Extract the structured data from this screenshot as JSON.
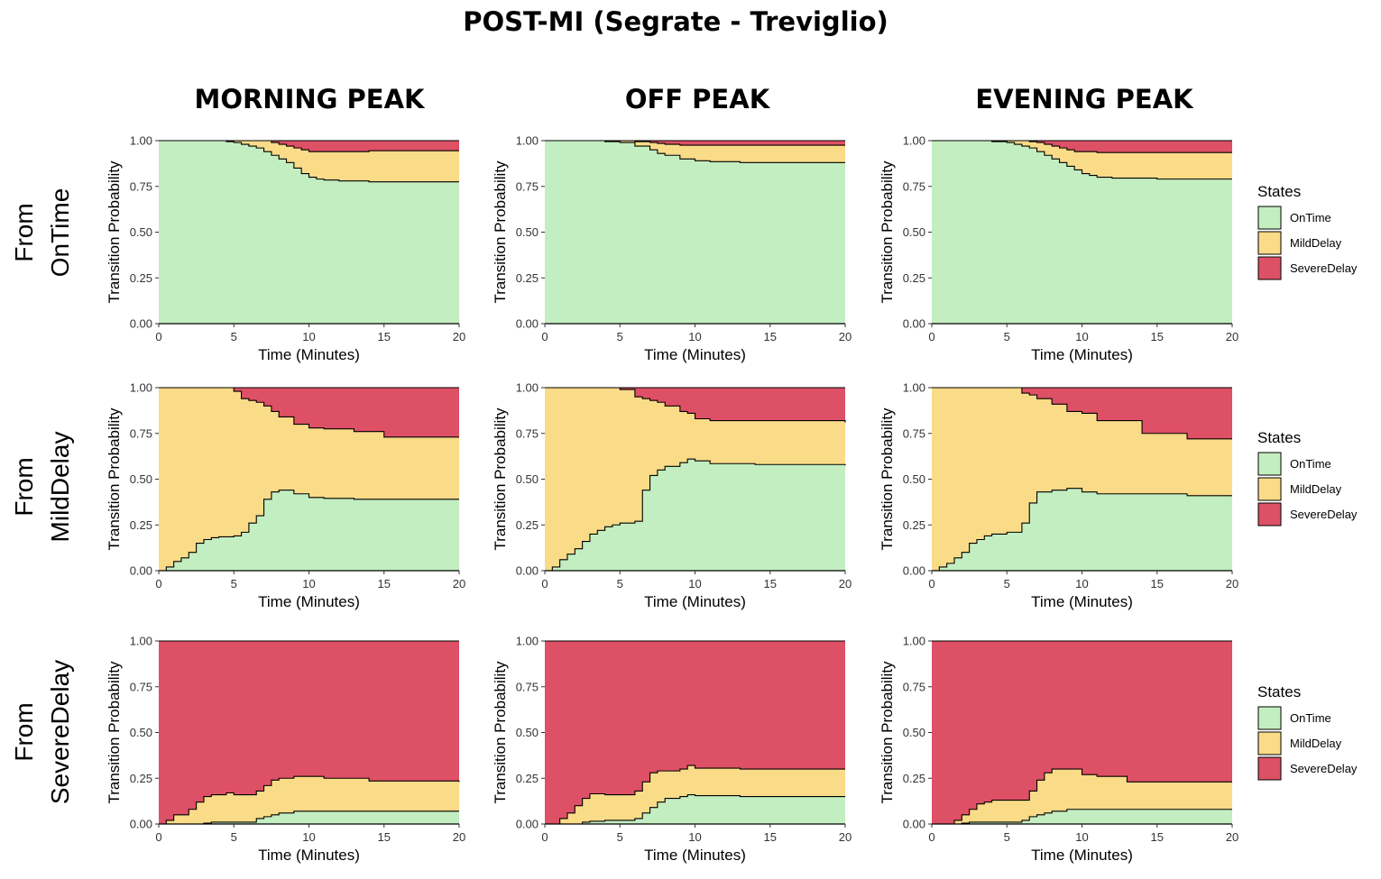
{
  "title": "POST-MI (Segrate - Treviglio)",
  "columns": [
    "MORNING PEAK",
    "OFF PEAK",
    "EVENING PEAK"
  ],
  "rows": [
    {
      "line1": "From",
      "line2": "OnTime"
    },
    {
      "line1": "From",
      "line2": "MildDelay"
    },
    {
      "line1": "From",
      "line2": "SevereDelay"
    }
  ],
  "legend": {
    "title": "States",
    "items": [
      {
        "label": "OnTime",
        "color": "#c3eec1"
      },
      {
        "label": "MildDelay",
        "color": "#fadb88"
      },
      {
        "label": "SevereDelay",
        "color": "#de5065"
      }
    ]
  },
  "chart_data": [
    {
      "type": "area",
      "stacked": true,
      "step": true,
      "row": "From OnTime",
      "column": "MORNING PEAK",
      "xlabel": "Time (Minutes)",
      "ylabel": "Transition Probability",
      "xlim": [
        0,
        20
      ],
      "ylim": [
        0,
        1
      ],
      "xticks": [
        "0",
        "5",
        "10",
        "15",
        "20"
      ],
      "yticks": [
        "0.00",
        "0.25",
        "0.50",
        "0.75",
        "1.00"
      ],
      "x": [
        0,
        2,
        3.5,
        4.5,
        5,
        5.5,
        6,
        6.5,
        7,
        7.5,
        8,
        8.5,
        9,
        9.5,
        10,
        10.5,
        11,
        12,
        14,
        20
      ],
      "series": [
        {
          "name": "OnTime",
          "values": [
            1.0,
            1.0,
            1.0,
            0.995,
            0.99,
            0.98,
            0.97,
            0.96,
            0.94,
            0.92,
            0.9,
            0.88,
            0.85,
            0.82,
            0.8,
            0.79,
            0.785,
            0.78,
            0.775,
            0.775
          ]
        },
        {
          "name": "MildDelay",
          "values": [
            0,
            0,
            0,
            0.005,
            0.01,
            0.02,
            0.03,
            0.04,
            0.06,
            0.07,
            0.08,
            0.09,
            0.11,
            0.13,
            0.14,
            0.15,
            0.155,
            0.16,
            0.17,
            0.17
          ]
        },
        {
          "name": "SevereDelay",
          "values": [
            0,
            0,
            0,
            0,
            0,
            0,
            0,
            0,
            0,
            0.01,
            0.02,
            0.03,
            0.04,
            0.05,
            0.06,
            0.06,
            0.06,
            0.06,
            0.055,
            0.055
          ]
        }
      ]
    },
    {
      "type": "area",
      "stacked": true,
      "step": true,
      "row": "From OnTime",
      "column": "OFF PEAK",
      "xlabel": "Time (Minutes)",
      "ylabel": "Transition Probability",
      "xlim": [
        0,
        20
      ],
      "ylim": [
        0,
        1
      ],
      "xticks": [
        "0",
        "5",
        "10",
        "15",
        "20"
      ],
      "yticks": [
        "0.00",
        "0.25",
        "0.50",
        "0.75",
        "1.00"
      ],
      "x": [
        0,
        4,
        5,
        6,
        7,
        7.5,
        8,
        9,
        10,
        11,
        13,
        20
      ],
      "series": [
        {
          "name": "OnTime",
          "values": [
            1.0,
            0.995,
            0.99,
            0.97,
            0.95,
            0.93,
            0.92,
            0.9,
            0.89,
            0.885,
            0.88,
            0.88
          ]
        },
        {
          "name": "MildDelay",
          "values": [
            0,
            0.005,
            0.01,
            0.025,
            0.04,
            0.055,
            0.06,
            0.075,
            0.085,
            0.09,
            0.095,
            0.095
          ]
        },
        {
          "name": "SevereDelay",
          "values": [
            0,
            0,
            0,
            0.005,
            0.01,
            0.015,
            0.02,
            0.025,
            0.025,
            0.025,
            0.025,
            0.025
          ]
        }
      ]
    },
    {
      "type": "area",
      "stacked": true,
      "step": true,
      "row": "From OnTime",
      "column": "EVENING PEAK",
      "xlabel": "Time (Minutes)",
      "ylabel": "Transition Probability",
      "xlim": [
        0,
        20
      ],
      "ylim": [
        0,
        1
      ],
      "xticks": [
        "0",
        "5",
        "10",
        "15",
        "20"
      ],
      "yticks": [
        "0.00",
        "0.25",
        "0.50",
        "0.75",
        "1.00"
      ],
      "x": [
        0,
        4,
        5,
        5.5,
        6,
        6.5,
        7,
        7.5,
        8,
        8.5,
        9,
        9.5,
        10,
        10.5,
        11,
        12,
        15,
        20
      ],
      "series": [
        {
          "name": "OnTime",
          "values": [
            1.0,
            0.995,
            0.99,
            0.98,
            0.97,
            0.96,
            0.94,
            0.92,
            0.9,
            0.88,
            0.86,
            0.84,
            0.82,
            0.81,
            0.8,
            0.795,
            0.79,
            0.79
          ]
        },
        {
          "name": "MildDelay",
          "values": [
            0,
            0.005,
            0.01,
            0.02,
            0.03,
            0.035,
            0.05,
            0.06,
            0.07,
            0.08,
            0.09,
            0.1,
            0.12,
            0.13,
            0.135,
            0.14,
            0.145,
            0.145
          ]
        },
        {
          "name": "SevereDelay",
          "values": [
            0,
            0,
            0,
            0,
            0,
            0.005,
            0.01,
            0.02,
            0.03,
            0.04,
            0.05,
            0.06,
            0.06,
            0.06,
            0.065,
            0.065,
            0.065,
            0.065
          ]
        }
      ]
    },
    {
      "type": "area",
      "stacked": true,
      "step": true,
      "row": "From MildDelay",
      "column": "MORNING PEAK",
      "xlabel": "Time (Minutes)",
      "ylabel": "Transition Probability",
      "xlim": [
        0,
        20
      ],
      "ylim": [
        0,
        1
      ],
      "xticks": [
        "0",
        "5",
        "10",
        "15",
        "20"
      ],
      "yticks": [
        "0.00",
        "0.25",
        "0.50",
        "0.75",
        "1.00"
      ],
      "x": [
        0,
        0.5,
        1,
        1.5,
        2,
        2.5,
        3,
        3.5,
        4,
        5,
        5.5,
        6,
        6.5,
        7,
        7.5,
        8,
        9,
        10,
        11,
        13,
        15,
        20
      ],
      "series": [
        {
          "name": "OnTime",
          "values": [
            0,
            0.02,
            0.05,
            0.07,
            0.1,
            0.15,
            0.17,
            0.18,
            0.185,
            0.19,
            0.21,
            0.26,
            0.3,
            0.39,
            0.43,
            0.44,
            0.42,
            0.4,
            0.395,
            0.39,
            0.39,
            0.39
          ]
        },
        {
          "name": "MildDelay",
          "values": [
            1.0,
            0.98,
            0.95,
            0.93,
            0.9,
            0.85,
            0.83,
            0.82,
            0.815,
            0.79,
            0.73,
            0.67,
            0.62,
            0.51,
            0.44,
            0.4,
            0.38,
            0.38,
            0.38,
            0.37,
            0.34,
            0.34
          ]
        },
        {
          "name": "SevereDelay",
          "values": [
            0,
            0,
            0,
            0,
            0,
            0,
            0,
            0,
            0,
            0.02,
            0.06,
            0.07,
            0.08,
            0.1,
            0.13,
            0.16,
            0.2,
            0.22,
            0.225,
            0.24,
            0.27,
            0.27
          ]
        }
      ]
    },
    {
      "type": "area",
      "stacked": true,
      "step": true,
      "row": "From MildDelay",
      "column": "OFF PEAK",
      "xlabel": "Time (Minutes)",
      "ylabel": "Transition Probability",
      "xlim": [
        0,
        20
      ],
      "ylim": [
        0,
        1
      ],
      "xticks": [
        "0",
        "5",
        "10",
        "15",
        "20"
      ],
      "yticks": [
        "0.00",
        "0.25",
        "0.50",
        "0.75",
        "1.00"
      ],
      "x": [
        0,
        0.5,
        1,
        1.5,
        2,
        2.5,
        3,
        3.5,
        4,
        4.5,
        5,
        6,
        6.5,
        7,
        7.5,
        8,
        9,
        9.5,
        10,
        11,
        14,
        20
      ],
      "series": [
        {
          "name": "OnTime",
          "values": [
            0,
            0.02,
            0.06,
            0.09,
            0.12,
            0.16,
            0.2,
            0.22,
            0.24,
            0.25,
            0.26,
            0.27,
            0.44,
            0.52,
            0.55,
            0.57,
            0.59,
            0.61,
            0.6,
            0.585,
            0.58,
            0.575
          ]
        },
        {
          "name": "MildDelay",
          "values": [
            1.0,
            0.98,
            0.94,
            0.91,
            0.88,
            0.84,
            0.8,
            0.78,
            0.76,
            0.75,
            0.73,
            0.68,
            0.5,
            0.41,
            0.37,
            0.33,
            0.28,
            0.25,
            0.23,
            0.235,
            0.24,
            0.235
          ]
        },
        {
          "name": "SevereDelay",
          "values": [
            0,
            0,
            0,
            0,
            0,
            0,
            0,
            0,
            0,
            0,
            0.01,
            0.05,
            0.06,
            0.07,
            0.08,
            0.1,
            0.13,
            0.14,
            0.17,
            0.18,
            0.18,
            0.19
          ]
        }
      ]
    },
    {
      "type": "area",
      "stacked": true,
      "step": true,
      "row": "From MildDelay",
      "column": "EVENING PEAK",
      "xlabel": "Time (Minutes)",
      "ylabel": "Transition Probability",
      "xlim": [
        0,
        20
      ],
      "ylim": [
        0,
        1
      ],
      "xticks": [
        "0",
        "5",
        "10",
        "15",
        "20"
      ],
      "yticks": [
        "0.00",
        "0.25",
        "0.50",
        "0.75",
        "1.00"
      ],
      "x": [
        0,
        0.5,
        1,
        1.5,
        2,
        2.5,
        3,
        3.5,
        4,
        5,
        6,
        6.5,
        7,
        8,
        9,
        10,
        11,
        14,
        17,
        20
      ],
      "series": [
        {
          "name": "OnTime",
          "values": [
            0,
            0.02,
            0.04,
            0.07,
            0.1,
            0.15,
            0.17,
            0.19,
            0.2,
            0.21,
            0.26,
            0.37,
            0.43,
            0.44,
            0.45,
            0.43,
            0.42,
            0.42,
            0.41,
            0.41
          ]
        },
        {
          "name": "MildDelay",
          "values": [
            1.0,
            0.98,
            0.96,
            0.93,
            0.9,
            0.85,
            0.83,
            0.81,
            0.8,
            0.79,
            0.71,
            0.59,
            0.51,
            0.47,
            0.42,
            0.43,
            0.4,
            0.33,
            0.31,
            0.31
          ]
        },
        {
          "name": "SevereDelay",
          "values": [
            0,
            0,
            0,
            0,
            0,
            0,
            0,
            0,
            0,
            0,
            0.03,
            0.04,
            0.06,
            0.09,
            0.13,
            0.14,
            0.18,
            0.25,
            0.28,
            0.28
          ]
        }
      ]
    },
    {
      "type": "area",
      "stacked": true,
      "step": true,
      "row": "From SevereDelay",
      "column": "MORNING PEAK",
      "xlabel": "Time (Minutes)",
      "ylabel": "Transition Probability",
      "xlim": [
        0,
        20
      ],
      "ylim": [
        0,
        1
      ],
      "xticks": [
        "0",
        "5",
        "10",
        "15",
        "20"
      ],
      "yticks": [
        "0.00",
        "0.25",
        "0.50",
        "0.75",
        "1.00"
      ],
      "x": [
        0,
        0.5,
        1,
        2,
        2.5,
        3,
        3.5,
        4.5,
        5,
        6.5,
        7,
        7.5,
        8,
        9,
        10,
        11,
        14,
        20
      ],
      "series": [
        {
          "name": "OnTime",
          "values": [
            0,
            0,
            0,
            0,
            0,
            0.005,
            0.01,
            0.01,
            0.01,
            0.03,
            0.04,
            0.05,
            0.06,
            0.07,
            0.07,
            0.07,
            0.07,
            0.07
          ]
        },
        {
          "name": "MildDelay",
          "values": [
            0,
            0.02,
            0.05,
            0.08,
            0.12,
            0.145,
            0.15,
            0.16,
            0.15,
            0.15,
            0.17,
            0.19,
            0.19,
            0.19,
            0.19,
            0.18,
            0.165,
            0.16
          ]
        },
        {
          "name": "SevereDelay",
          "values": [
            1.0,
            0.98,
            0.95,
            0.92,
            0.88,
            0.85,
            0.84,
            0.83,
            0.84,
            0.82,
            0.79,
            0.76,
            0.75,
            0.74,
            0.74,
            0.75,
            0.765,
            0.77
          ]
        }
      ]
    },
    {
      "type": "area",
      "stacked": true,
      "step": true,
      "row": "From SevereDelay",
      "column": "OFF PEAK",
      "xlabel": "Time (Minutes)",
      "ylabel": "Transition Probability",
      "xlim": [
        0,
        20
      ],
      "ylim": [
        0,
        1
      ],
      "xticks": [
        "0",
        "5",
        "10",
        "15",
        "20"
      ],
      "yticks": [
        "0.00",
        "0.25",
        "0.50",
        "0.75",
        "1.00"
      ],
      "x": [
        0,
        1,
        1.5,
        2,
        2.5,
        3,
        4,
        5,
        6,
        6.5,
        7,
        7.5,
        8,
        9,
        9.5,
        10,
        13,
        20
      ],
      "series": [
        {
          "name": "OnTime",
          "values": [
            0,
            0,
            0,
            0,
            0.01,
            0.015,
            0.02,
            0.02,
            0.03,
            0.06,
            0.09,
            0.12,
            0.14,
            0.15,
            0.16,
            0.155,
            0.15,
            0.15
          ]
        },
        {
          "name": "MildDelay",
          "values": [
            0,
            0.03,
            0.06,
            0.1,
            0.13,
            0.15,
            0.14,
            0.14,
            0.15,
            0.17,
            0.19,
            0.17,
            0.15,
            0.15,
            0.16,
            0.15,
            0.15,
            0.15
          ]
        },
        {
          "name": "SevereDelay",
          "values": [
            1.0,
            0.97,
            0.94,
            0.9,
            0.86,
            0.835,
            0.84,
            0.84,
            0.82,
            0.77,
            0.72,
            0.71,
            0.71,
            0.7,
            0.68,
            0.695,
            0.7,
            0.7
          ]
        }
      ]
    },
    {
      "type": "area",
      "stacked": true,
      "step": true,
      "row": "From SevereDelay",
      "column": "EVENING PEAK",
      "xlabel": "Time (Minutes)",
      "ylabel": "Transition Probability",
      "xlim": [
        0,
        20
      ],
      "ylim": [
        0,
        1
      ],
      "xticks": [
        "0",
        "5",
        "10",
        "15",
        "20"
      ],
      "yticks": [
        "0.00",
        "0.25",
        "0.50",
        "0.75",
        "1.00"
      ],
      "x": [
        0,
        1.5,
        2,
        2.5,
        3,
        3.5,
        4,
        5,
        6,
        6.5,
        7,
        7.5,
        8,
        9,
        10,
        11,
        13,
        20
      ],
      "series": [
        {
          "name": "OnTime",
          "values": [
            0,
            0,
            0.005,
            0.01,
            0.01,
            0.01,
            0.01,
            0.01,
            0.02,
            0.04,
            0.05,
            0.06,
            0.07,
            0.08,
            0.08,
            0.08,
            0.08,
            0.08
          ]
        },
        {
          "name": "MildDelay",
          "values": [
            0,
            0.02,
            0.045,
            0.07,
            0.1,
            0.11,
            0.12,
            0.12,
            0.11,
            0.14,
            0.19,
            0.22,
            0.23,
            0.22,
            0.19,
            0.18,
            0.15,
            0.15
          ]
        },
        {
          "name": "SevereDelay",
          "values": [
            1.0,
            0.98,
            0.95,
            0.92,
            0.89,
            0.88,
            0.87,
            0.87,
            0.87,
            0.82,
            0.76,
            0.72,
            0.7,
            0.7,
            0.73,
            0.74,
            0.77,
            0.77
          ]
        }
      ]
    }
  ]
}
